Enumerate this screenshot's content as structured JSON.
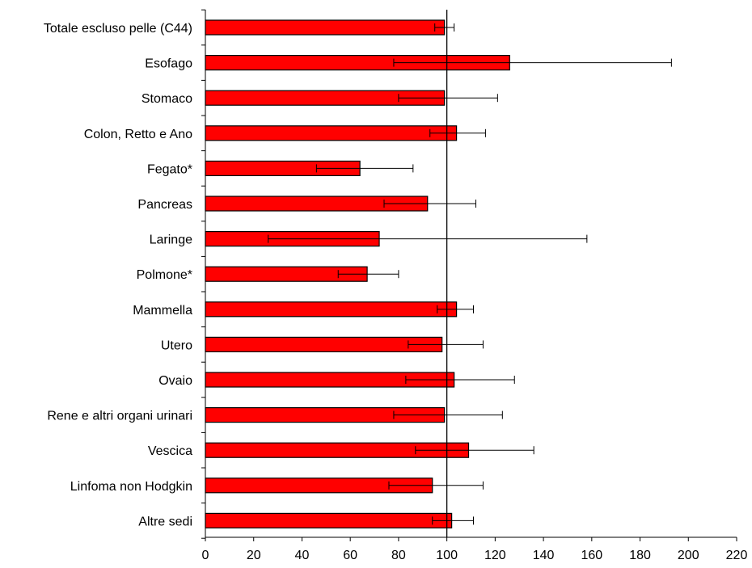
{
  "chart_data": {
    "type": "bar",
    "orientation": "horizontal",
    "title": "",
    "xlabel": "",
    "ylabel": "",
    "xlim": [
      0,
      220
    ],
    "xticks": [
      0,
      20,
      40,
      60,
      80,
      100,
      120,
      140,
      160,
      180,
      200,
      220
    ],
    "reference_line": 100,
    "grid": false,
    "legend": "none",
    "bar_color": "#ff0000",
    "categories": [
      "Totale escluso pelle (C44)",
      "Esofago",
      "Stomaco",
      "Colon, Retto e Ano",
      "Fegato*",
      "Pancreas",
      "Laringe",
      "Polmone*",
      "Mammella",
      "Utero",
      "Ovaio",
      "Rene e altri organi urinari",
      "Vescica",
      "Linfoma  non  Hodgkin",
      "Altre sedi"
    ],
    "values": [
      99,
      126,
      99,
      104,
      64,
      92,
      72,
      67,
      104,
      98,
      103,
      99,
      109,
      94,
      102
    ],
    "error_low": [
      95,
      78,
      80,
      93,
      46,
      74,
      26,
      55,
      96,
      84,
      83,
      78,
      87,
      76,
      94
    ],
    "error_high": [
      103,
      193,
      121,
      116,
      86,
      112,
      158,
      80,
      111,
      115,
      128,
      123,
      136,
      115,
      111
    ]
  }
}
